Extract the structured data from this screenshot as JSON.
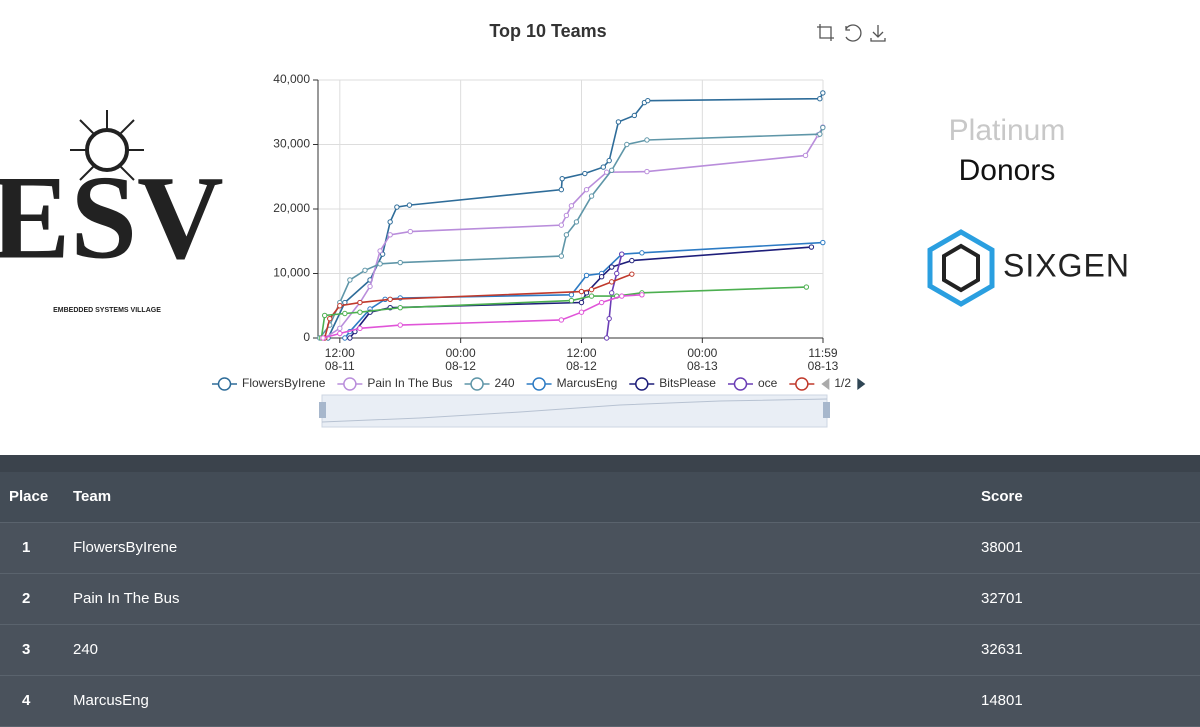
{
  "logo": {
    "title": "ESV",
    "tagline": "EMBEDDED SYSTEMS VILLAGE"
  },
  "sponsors": {
    "heading_1": "Platinum",
    "heading_2": "Donors",
    "logo": "SIXGEN"
  },
  "chart_data": {
    "type": "line",
    "title": "Top 10 Teams",
    "legend_page": "1/2",
    "xlim": [
      "08-11 09:50",
      "08-13 11:59"
    ],
    "xticks": [
      {
        "value": "08-11 12:00",
        "label": "12:00\n08-11"
      },
      {
        "value": "08-12 00:00",
        "label": "00:00\n08-12"
      },
      {
        "value": "08-12 12:00",
        "label": "12:00\n08-12"
      },
      {
        "value": "08-13 00:00",
        "label": "00:00\n08-13"
      },
      {
        "value": "08-13 11:59",
        "label": "11:59\n08-13"
      }
    ],
    "ylim": [
      0,
      40000
    ],
    "yticks": [
      0,
      {
        "value": 10000,
        "label": "10,000"
      },
      {
        "value": 20000,
        "label": "20,000"
      },
      {
        "value": 30000,
        "label": "30,000"
      },
      {
        "value": 40000,
        "label": "40,000"
      }
    ],
    "grid": true,
    "series": [
      {
        "name": "FlowersByIrene",
        "color": "#2e6c99",
        "legend": true,
        "x": [
          "08-11 10:50",
          "08-11 12:30",
          "08-11 15:00",
          "08-11 16:15",
          "08-11 17:00",
          "08-11 17:40",
          "08-11 18:55",
          "08-12 10:00",
          "08-12 10:05",
          "08-12 12:20",
          "08-12 14:10",
          "08-12 14:45",
          "08-12 15:40",
          "08-12 17:15",
          "08-12 18:15",
          "08-12 18:35",
          "08-13 11:40",
          "08-13 11:58"
        ],
        "values": [
          0,
          5500,
          9000,
          13000,
          18000,
          20300,
          20600,
          23000,
          24700,
          25500,
          26500,
          27500,
          33500,
          34500,
          36500,
          36800,
          37100,
          38001
        ]
      },
      {
        "name": "Pain In The Bus",
        "color": "#b98ddb",
        "legend": true,
        "x": [
          "08-11 10:30",
          "08-11 12:00",
          "08-11 14:00",
          "08-11 15:00",
          "08-11 16:00",
          "08-11 17:00",
          "08-11 19:00",
          "08-12 10:00",
          "08-12 10:30",
          "08-12 11:00",
          "08-12 12:30",
          "08-12 14:30",
          "08-12 18:30",
          "08-13 10:15",
          "08-13 11:30",
          "08-13 11:58"
        ],
        "values": [
          0,
          1500,
          5500,
          8000,
          13500,
          16000,
          16500,
          17500,
          19000,
          20500,
          23000,
          25700,
          25800,
          28300,
          31500,
          32701
        ]
      },
      {
        "name": "240",
        "color": "#5f96a8",
        "legend": true,
        "x": [
          "08-11 10:00",
          "08-11 11:00",
          "08-11 12:00",
          "08-11 13:00",
          "08-11 14:30",
          "08-11 16:00",
          "08-11 18:00",
          "08-12 10:00",
          "08-12 10:30",
          "08-12 11:30",
          "08-12 13:00",
          "08-12 15:00",
          "08-12 16:30",
          "08-12 18:30",
          "08-13 11:40",
          "08-13 11:58"
        ],
        "values": [
          0,
          2000,
          5500,
          9000,
          10500,
          11500,
          11700,
          12700,
          16000,
          18000,
          22000,
          26000,
          30000,
          30700,
          31600,
          32631
        ]
      },
      {
        "name": "MarcusEng",
        "color": "#2d7bc4",
        "legend": true,
        "x": [
          "08-11 12:30",
          "08-11 13:00",
          "08-11 15:00",
          "08-11 16:30",
          "08-11 18:00",
          "08-12 11:00",
          "08-12 12:30",
          "08-12 14:00",
          "08-12 16:00",
          "08-12 18:00",
          "08-13 11:58"
        ],
        "values": [
          0,
          1000,
          4500,
          6000,
          6200,
          6700,
          9700,
          10000,
          13000,
          13200,
          14801
        ]
      },
      {
        "name": "BitsPlease",
        "color": "#1e1e7a",
        "legend": true,
        "x": [
          "08-11 13:00",
          "08-11 13:30",
          "08-11 15:00",
          "08-11 17:00",
          "08-12 12:00",
          "08-12 12:30",
          "08-12 14:00",
          "08-12 15:00",
          "08-12 17:00",
          "08-13 10:50"
        ],
        "values": [
          0,
          1000,
          4000,
          4700,
          5500,
          7000,
          9500,
          11000,
          12000,
          14100
        ]
      },
      {
        "name": "oce",
        "color": "#6a3db5",
        "legend": true,
        "x": [
          "08-12 14:30",
          "08-12 14:45",
          "08-12 15:00",
          "08-12 15:30",
          "08-12 16:00"
        ],
        "values": [
          0,
          3000,
          7000,
          10000,
          13000
        ]
      },
      {
        "color": "#c0392b",
        "legend": true,
        "x": [
          "08-11 10:30",
          "08-11 11:00",
          "08-11 12:00",
          "08-11 14:00",
          "08-11 17:00",
          "08-12 12:00",
          "08-12 13:00",
          "08-12 15:00",
          "08-12 17:00"
        ],
        "values": [
          0,
          3000,
          5000,
          5500,
          6000,
          7200,
          7500,
          8700,
          9900
        ]
      },
      {
        "color": "#4caf50",
        "x": [
          "08-11 10:10",
          "08-11 10:30",
          "08-11 12:30",
          "08-11 14:00",
          "08-11 18:00",
          "08-12 11:00",
          "08-12 13:00",
          "08-12 15:30",
          "08-12 18:00",
          "08-13 10:20"
        ],
        "values": [
          0,
          3500,
          3800,
          4000,
          4700,
          5800,
          6500,
          6500,
          7000,
          7900
        ]
      },
      {
        "color": "#e055d8",
        "x": [
          "08-11 10:20",
          "08-11 12:00",
          "08-11 14:00",
          "08-11 18:00",
          "08-12 10:00",
          "08-12 12:00",
          "08-12 14:00",
          "08-12 16:00",
          "08-12 18:00"
        ],
        "values": [
          0,
          700,
          1500,
          2000,
          2800,
          4000,
          5500,
          6500,
          6700
        ]
      }
    ]
  },
  "table": {
    "columns": [
      "Place",
      "Team",
      "Score"
    ],
    "rows": [
      [
        1,
        "FlowersByIrene",
        38001
      ],
      [
        2,
        "Pain In The Bus",
        32701
      ],
      [
        3,
        "240",
        32631
      ],
      [
        4,
        "MarcusEng",
        14801
      ]
    ]
  }
}
